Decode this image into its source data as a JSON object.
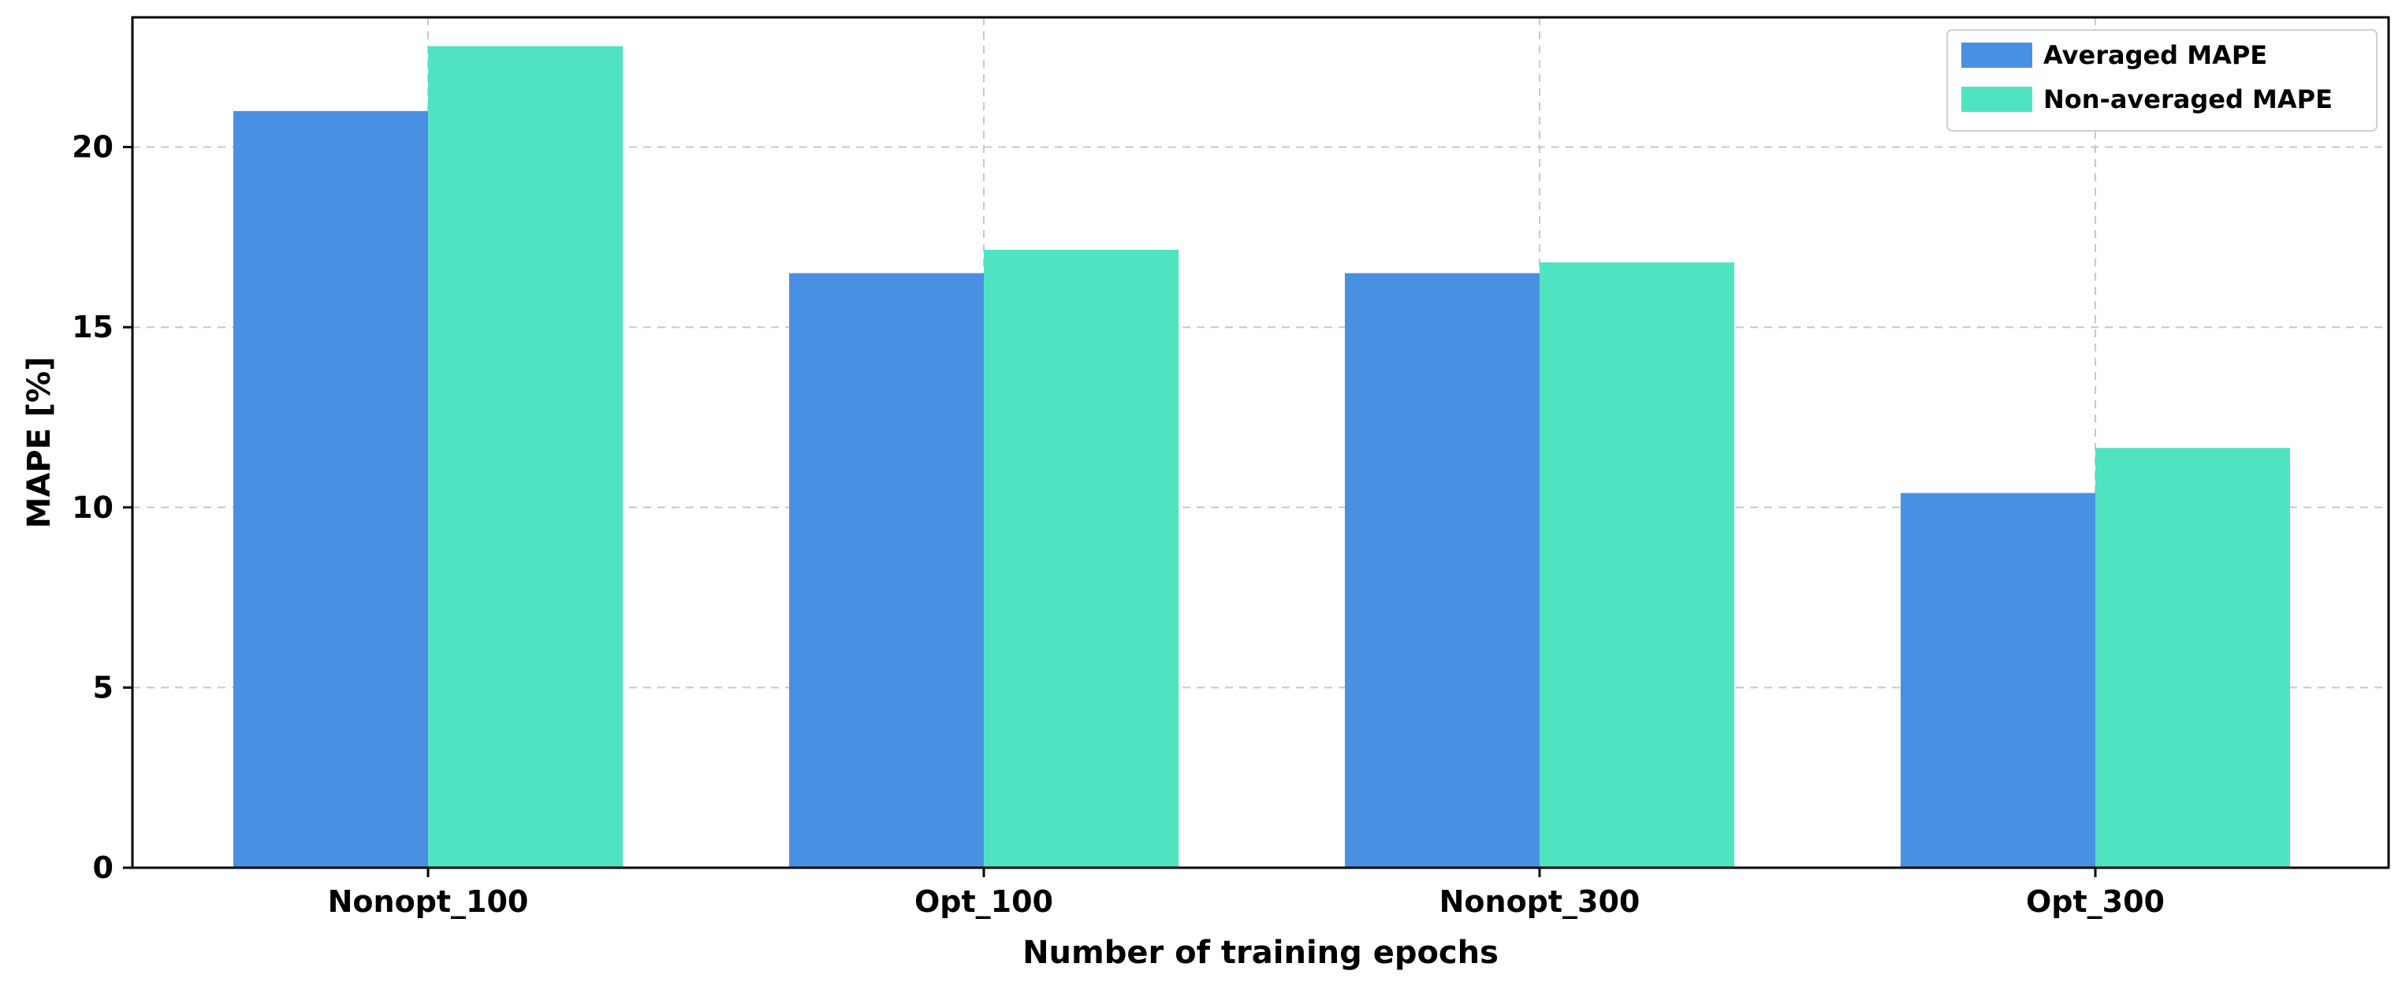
{
  "chart_data": {
    "type": "bar",
    "title": "",
    "xlabel": "Number of training epochs",
    "ylabel": "MAPE [%]",
    "categories": [
      "Nonopt_100",
      "Opt_100",
      "Nonopt_300",
      "Opt_300"
    ],
    "series": [
      {
        "name": "Averaged MAPE",
        "color": "#4a90e2",
        "values": [
          21.0,
          16.5,
          16.5,
          10.4
        ]
      },
      {
        "name": "Non-averaged MAPE",
        "color": "#50e3c2",
        "values": [
          22.8,
          17.15,
          16.8,
          11.65
        ]
      }
    ],
    "ylim": [
      0,
      23.6
    ],
    "yticks": [
      0,
      5,
      10,
      15,
      20
    ],
    "grid": true,
    "legend_position": "top-right"
  }
}
